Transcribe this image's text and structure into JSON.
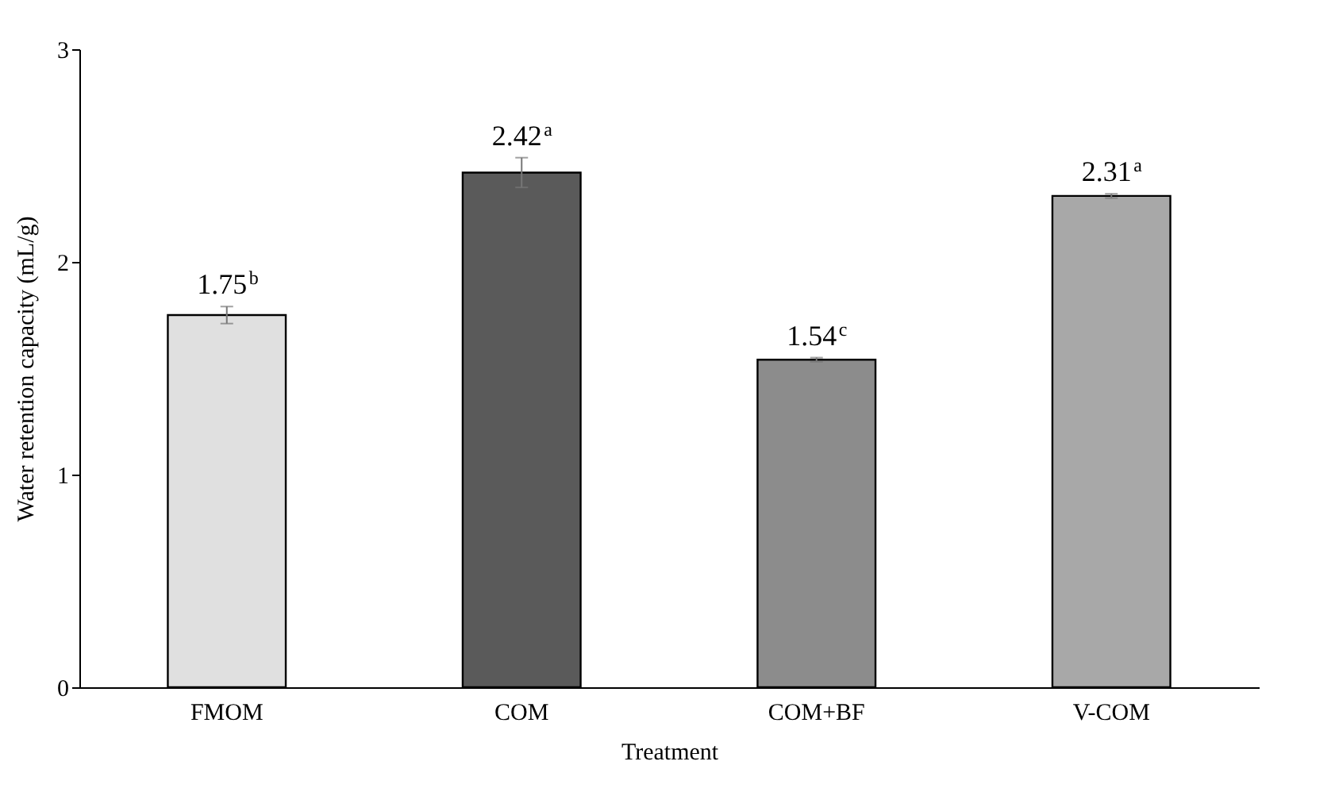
{
  "chart_data": {
    "type": "bar",
    "xlabel": "Treatment",
    "ylabel": "Water retention capacity (mL/g)",
    "categories": [
      "FMOM",
      "COM",
      "COM+BF",
      "V-COM"
    ],
    "values": [
      1.75,
      2.42,
      1.54,
      2.31
    ],
    "colors": [
      "#e0e0e0",
      "#5a5a5a",
      "#8c8c8c",
      "#a8a8a8"
    ],
    "errors": [
      0.04,
      0.07,
      0.01,
      0.01
    ],
    "value_labels": [
      "1.75$^{b}$",
      "2.42$^{a}$",
      "1.54$^{c}$",
      "2.31$^{a}$"
    ],
    "ylim": [
      0,
      3
    ],
    "yticks": [
      0,
      1,
      2,
      3
    ],
    "grid": false
  }
}
